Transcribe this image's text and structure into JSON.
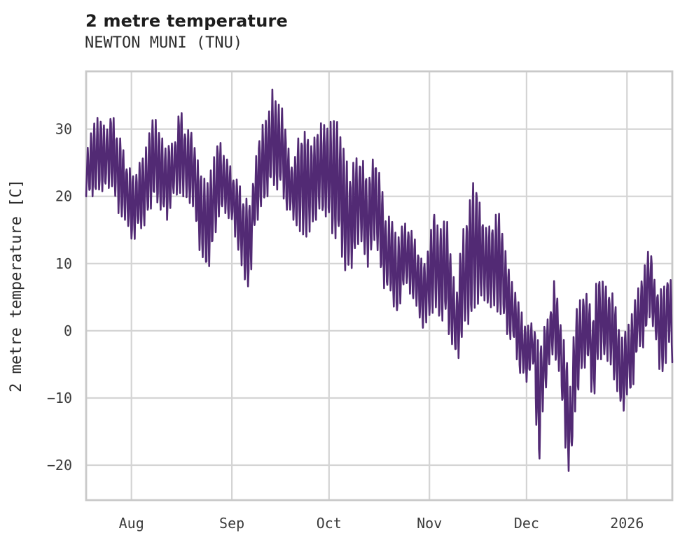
{
  "header": {
    "title": "2 metre temperature",
    "subtitle": "NEWTON MUNI (TNU)"
  },
  "chart_data": {
    "type": "line",
    "title": "2 metre temperature",
    "subtitle": "NEWTON MUNI (TNU)",
    "xlabel": "",
    "ylabel": "2 metre temperature [C]",
    "legend": "none",
    "grid": true,
    "colors": {
      "line": "#522a74",
      "grid": "#d4d4d4",
      "spine": "#c9c9c9",
      "tick_text": "#3c3c3c",
      "background": "#ffffff"
    },
    "ylim": [
      -25.2,
      38.6
    ],
    "yticks": [
      -20,
      -10,
      0,
      10,
      20,
      30
    ],
    "xlim_days": [
      0,
      181
    ],
    "xticks": [
      {
        "label": "Aug",
        "day": 14
      },
      {
        "label": "Sep",
        "day": 45
      },
      {
        "label": "Oct",
        "day": 75
      },
      {
        "label": "Nov",
        "day": 106
      },
      {
        "label": "Dec",
        "day": 136
      },
      {
        "label": "2026",
        "day": 167
      }
    ],
    "series": [
      {
        "name": "2 metre temperature",
        "sampling": "hourly-looking trace; values captured as daily min/max envelope control points",
        "envelope_format": [
          "day_offset",
          "min_C",
          "max_C"
        ],
        "envelope": [
          [
            0,
            20,
            26.3
          ],
          [
            2,
            20,
            30.4
          ],
          [
            4,
            20.5,
            32.2
          ],
          [
            6,
            21,
            30
          ],
          [
            8,
            21.5,
            32.4
          ],
          [
            10,
            17.5,
            29.5
          ],
          [
            12,
            16.5,
            26
          ],
          [
            14.5,
            13,
            23
          ],
          [
            16,
            15,
            24.5
          ],
          [
            18,
            15.5,
            26.5
          ],
          [
            21,
            19.5,
            32.3
          ],
          [
            23,
            18,
            29
          ],
          [
            25,
            16.5,
            27.5
          ],
          [
            27,
            20,
            28
          ],
          [
            29,
            20.5,
            33.2
          ],
          [
            31,
            19.5,
            30
          ],
          [
            33,
            18.5,
            29.5
          ],
          [
            35,
            12,
            24
          ],
          [
            37.5,
            8.4,
            22
          ],
          [
            39,
            12,
            25
          ],
          [
            41,
            17,
            28.6
          ],
          [
            43,
            17.5,
            26
          ],
          [
            45,
            16,
            24
          ],
          [
            47,
            12,
            22
          ],
          [
            49,
            7.4,
            20
          ],
          [
            50.5,
            6.2,
            19
          ],
          [
            52,
            15,
            24.5
          ],
          [
            54,
            18,
            30.5
          ],
          [
            56,
            20,
            31.5
          ],
          [
            57.5,
            22,
            35.9
          ],
          [
            59,
            21,
            33.5
          ],
          [
            60.5,
            20.5,
            33.9
          ],
          [
            62,
            18,
            28
          ],
          [
            64,
            16.5,
            24.5
          ],
          [
            66,
            14.6,
            30
          ],
          [
            68,
            14,
            29.5
          ],
          [
            70,
            15.5,
            28
          ],
          [
            72,
            17.5,
            31
          ],
          [
            74,
            17,
            30.5
          ],
          [
            76,
            14.5,
            31.3
          ],
          [
            78,
            13,
            31
          ],
          [
            80,
            9,
            25.8
          ],
          [
            81.5,
            8,
            24
          ],
          [
            83,
            12,
            25.5
          ],
          [
            85,
            13.3,
            26.2
          ],
          [
            87,
            9.5,
            22.5
          ],
          [
            89,
            13.5,
            26.5
          ],
          [
            91,
            9,
            22.5
          ],
          [
            92.5,
            5,
            17
          ],
          [
            94,
            6,
            17
          ],
          [
            96,
            1.2,
            13.8
          ],
          [
            98,
            6.9,
            16.1
          ],
          [
            100,
            5.5,
            15.5
          ],
          [
            102,
            3.5,
            13
          ],
          [
            104,
            0.4,
            10
          ],
          [
            106,
            2,
            13
          ],
          [
            107.5,
            3,
            19.1
          ],
          [
            109,
            2,
            14
          ],
          [
            111,
            1,
            18.6
          ],
          [
            113,
            -2,
            9
          ],
          [
            114.5,
            -5.6,
            6
          ],
          [
            116,
            -1,
            14.2
          ],
          [
            118,
            1,
            18
          ],
          [
            120,
            3,
            23.8
          ],
          [
            122,
            5,
            17.5
          ],
          [
            124,
            4,
            15
          ],
          [
            126,
            3,
            17.2
          ],
          [
            128,
            2.5,
            17.5
          ],
          [
            130,
            -0.5,
            10
          ],
          [
            132,
            -2,
            6.5
          ],
          [
            134,
            -6.5,
            3.5
          ],
          [
            136,
            -7.6,
            0.5
          ],
          [
            138,
            -5,
            1.6
          ],
          [
            139.8,
            -21.2,
            -2
          ],
          [
            141,
            -12,
            0.2
          ],
          [
            143,
            -5,
            2.2
          ],
          [
            144.5,
            -3.5,
            7.4
          ],
          [
            146,
            -6,
            3.5
          ],
          [
            148,
            -17.4,
            -3
          ],
          [
            149.5,
            -22.6,
            -8
          ],
          [
            151,
            -12,
            2.6
          ],
          [
            153,
            -6.5,
            5.2
          ],
          [
            155,
            -4.5,
            5.6
          ],
          [
            156.5,
            -11.5,
            2
          ],
          [
            158,
            -5,
            9.5
          ],
          [
            160,
            -3.5,
            6.6
          ],
          [
            162,
            -5.5,
            6.6
          ],
          [
            164,
            -9,
            2.5
          ],
          [
            165.5,
            -13.1,
            -1
          ],
          [
            167,
            -9.5,
            0.6
          ],
          [
            168.5,
            -10.2,
            2.5
          ],
          [
            170,
            -3.5,
            5.6
          ],
          [
            172,
            -2.5,
            8.5
          ],
          [
            174,
            2,
            13.5
          ],
          [
            175.5,
            0,
            7.6
          ],
          [
            177,
            -5.7,
            6
          ],
          [
            178.5,
            -6.2,
            6.6
          ],
          [
            180,
            -2,
            10.1
          ],
          [
            181,
            -4.7,
            5
          ]
        ]
      }
    ]
  }
}
